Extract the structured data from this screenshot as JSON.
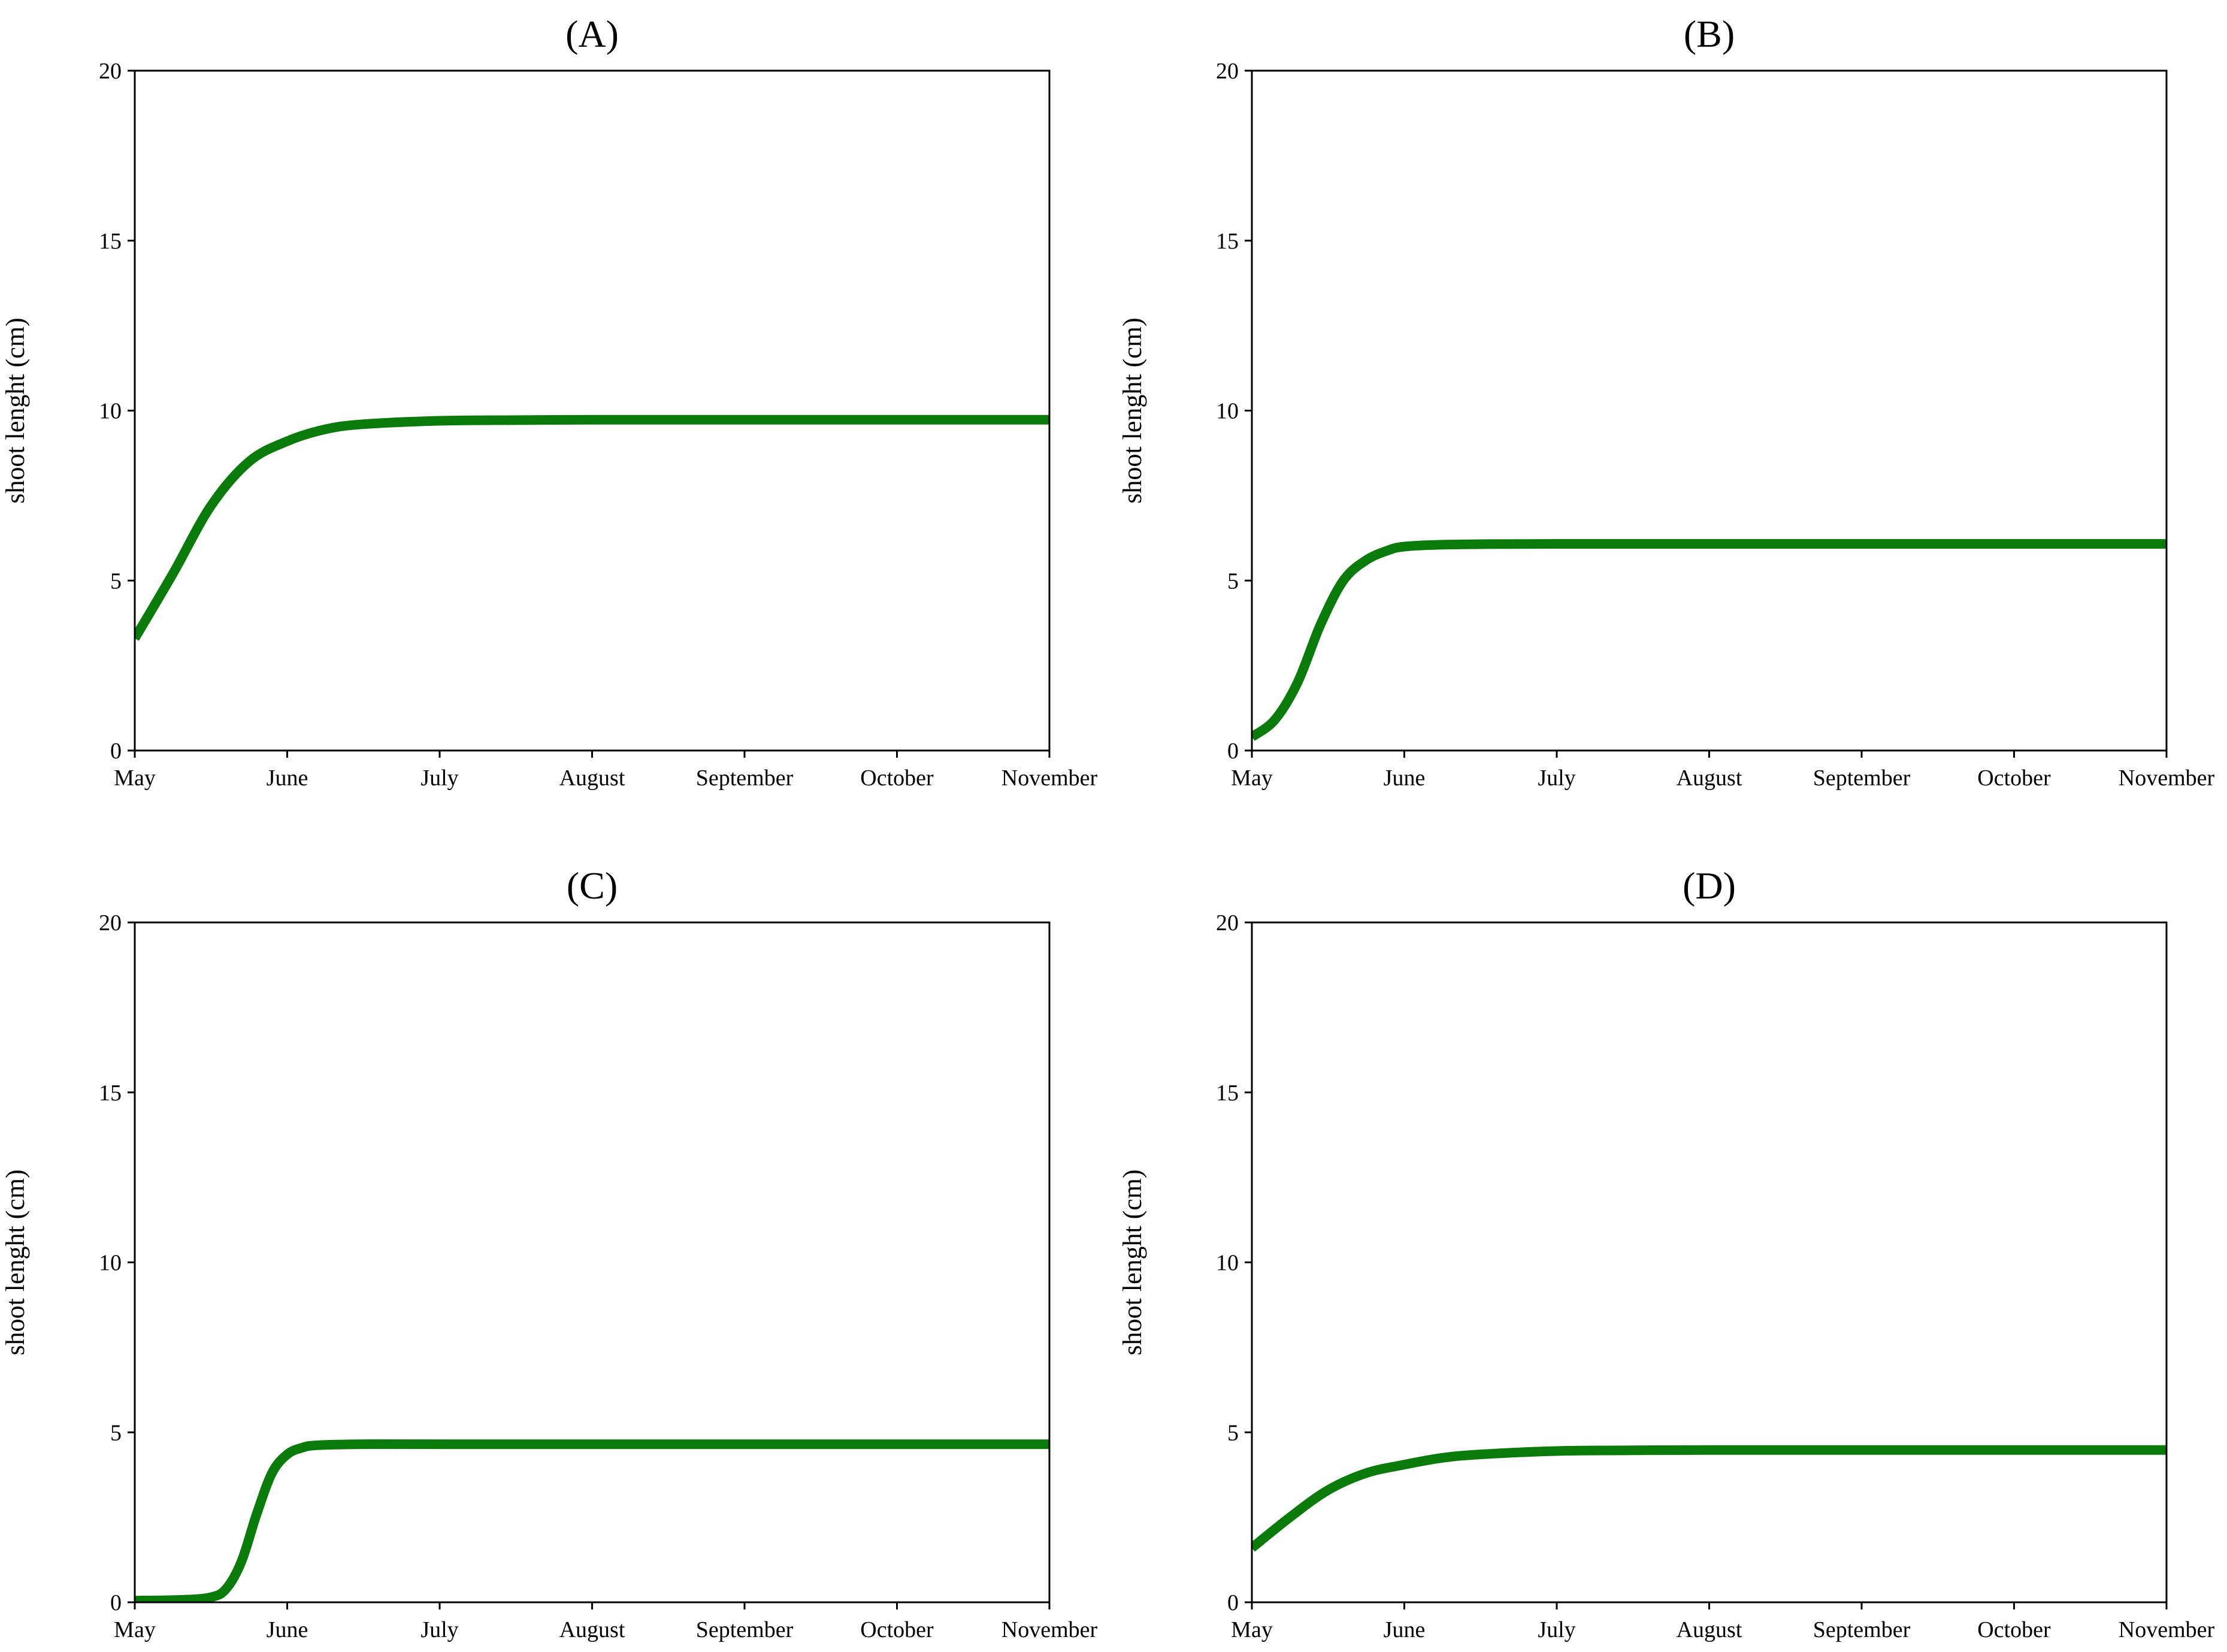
{
  "chart_data": [
    {
      "type": "line",
      "title": "(A)",
      "xlabel": "",
      "ylabel": "shoot lenght (cm)",
      "x_tick_labels": [
        "May",
        "June",
        "July",
        "August",
        "September",
        "October",
        "November"
      ],
      "y_tick_labels": [
        "0",
        "5",
        "10",
        "15",
        "20"
      ],
      "xlim": [
        0,
        6
      ],
      "ylim": [
        0,
        20
      ],
      "grid": false,
      "line_color": "#0a7a0a",
      "series": [
        {
          "x": [
            0,
            0.25,
            0.5,
            0.75,
            1.0,
            1.25,
            1.5,
            2.0,
            2.5,
            3.0,
            4.0,
            5.0,
            6.0
          ],
          "y": [
            3.3,
            5.2,
            7.2,
            8.5,
            9.1,
            9.45,
            9.6,
            9.7,
            9.72,
            9.73,
            9.73,
            9.73,
            9.73
          ]
        }
      ]
    },
    {
      "type": "line",
      "title": "(B)",
      "xlabel": "",
      "ylabel": "shoot lenght (cm)",
      "x_tick_labels": [
        "May",
        "June",
        "July",
        "August",
        "September",
        "October",
        "November"
      ],
      "y_tick_labels": [
        "0",
        "5",
        "10",
        "15",
        "20"
      ],
      "xlim": [
        0,
        6
      ],
      "ylim": [
        0,
        20
      ],
      "grid": false,
      "line_color": "#0a7a0a",
      "series": [
        {
          "x": [
            0,
            0.15,
            0.3,
            0.45,
            0.6,
            0.75,
            0.9,
            1.0,
            1.2,
            1.5,
            2.0,
            3.0,
            4.0,
            5.0,
            6.0
          ],
          "y": [
            0.4,
            0.9,
            2.0,
            3.7,
            5.0,
            5.6,
            5.9,
            6.0,
            6.05,
            6.07,
            6.08,
            6.08,
            6.08,
            6.08,
            6.08
          ]
        }
      ]
    },
    {
      "type": "line",
      "title": "(C)",
      "xlabel": "",
      "ylabel": "shoot lenght (cm)",
      "x_tick_labels": [
        "May",
        "June",
        "July",
        "August",
        "September",
        "October",
        "November"
      ],
      "y_tick_labels": [
        "0",
        "5",
        "10",
        "15",
        "20"
      ],
      "xlim": [
        0,
        6
      ],
      "ylim": [
        0,
        20
      ],
      "grid": false,
      "line_color": "#0a7a0a",
      "series": [
        {
          "x": [
            0,
            0.3,
            0.5,
            0.6,
            0.7,
            0.8,
            0.9,
            1.0,
            1.1,
            1.2,
            1.5,
            2.0,
            3.0,
            4.0,
            5.0,
            6.0
          ],
          "y": [
            0.05,
            0.07,
            0.15,
            0.4,
            1.2,
            2.6,
            3.8,
            4.35,
            4.55,
            4.62,
            4.65,
            4.65,
            4.65,
            4.65,
            4.65,
            4.65
          ]
        }
      ]
    },
    {
      "type": "line",
      "title": "(D)",
      "xlabel": "",
      "ylabel": "shoot lenght (cm)",
      "x_tick_labels": [
        "May",
        "June",
        "July",
        "August",
        "September",
        "October",
        "November"
      ],
      "y_tick_labels": [
        "0",
        "5",
        "10",
        "15",
        "20"
      ],
      "xlim": [
        0,
        6
      ],
      "ylim": [
        0,
        20
      ],
      "grid": false,
      "line_color": "#0a7a0a",
      "series": [
        {
          "x": [
            0,
            0.25,
            0.5,
            0.75,
            1.0,
            1.25,
            1.5,
            2.0,
            2.5,
            3.0,
            4.0,
            5.0,
            6.0
          ],
          "y": [
            1.6,
            2.5,
            3.3,
            3.8,
            4.05,
            4.25,
            4.35,
            4.45,
            4.47,
            4.48,
            4.48,
            4.48,
            4.48
          ]
        }
      ]
    }
  ]
}
